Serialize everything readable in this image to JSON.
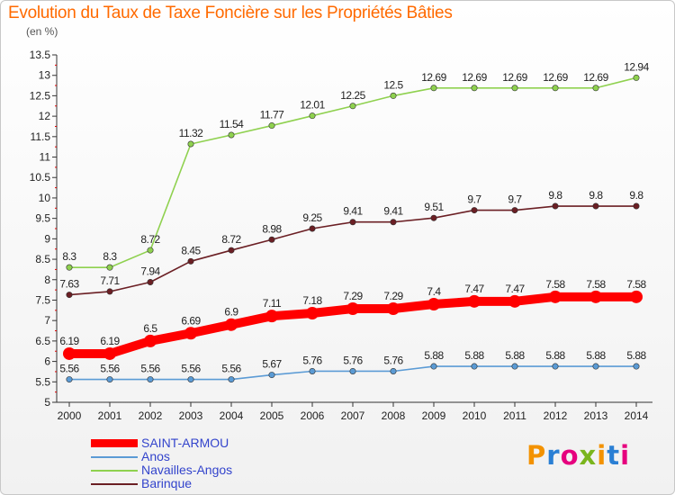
{
  "header": {
    "title": "Evolution du Taux de Taxe Foncière sur les Propriétés Bâties",
    "unit": "(en %)"
  },
  "logo": {
    "text": "Proxiti",
    "colors": [
      "#f39200",
      "#2a7fd4",
      "#e6007e",
      "#7ab51d",
      "#f39200",
      "#2a7fd4",
      "#e6007e"
    ]
  },
  "chart_data": {
    "type": "line",
    "title": "Evolution du Taux de Taxe Foncière sur les Propriétés Bâties",
    "ylabel": "(en %)",
    "xlabel": "",
    "ylim": [
      5,
      13.5
    ],
    "ytick_step": 0.5,
    "grid": false,
    "legend": "bottom-left",
    "x": [
      2000,
      2001,
      2002,
      2003,
      2004,
      2005,
      2006,
      2007,
      2008,
      2009,
      2010,
      2011,
      2012,
      2013,
      2014
    ],
    "series": [
      {
        "name": "SAINT-ARMOU",
        "color": "#ff0000",
        "values": [
          6.19,
          6.19,
          6.5,
          6.69,
          6.9,
          7.11,
          7.18,
          7.29,
          7.29,
          7.4,
          7.47,
          7.47,
          7.58,
          7.58,
          7.58
        ],
        "labels": [
          "6.19",
          "6.19",
          "6.5",
          "6.69",
          "6.9",
          "7.11",
          "7.18",
          "7.29",
          "7.29",
          "7.4",
          "7.47",
          "7.47",
          "7.58",
          "7.58",
          "7.58"
        ]
      },
      {
        "name": "Anos",
        "color": "#5b9bd5",
        "values": [
          5.56,
          5.56,
          5.56,
          5.56,
          5.56,
          5.67,
          5.76,
          5.76,
          5.76,
          5.88,
          5.88,
          5.88,
          5.88,
          5.88,
          5.88
        ],
        "labels": [
          "5.56",
          "5.56",
          "5.56",
          "5.56",
          "5.56",
          "5.67",
          "5.76",
          "5.76",
          "5.76",
          "5.88",
          "5.88",
          "5.88",
          "5.88",
          "5.88",
          "5.88"
        ]
      },
      {
        "name": "Navailles-Angos",
        "color": "#8fd14f",
        "values": [
          8.3,
          8.3,
          8.72,
          11.32,
          11.54,
          11.77,
          12.01,
          12.25,
          12.5,
          12.69,
          12.69,
          12.69,
          12.69,
          12.69,
          12.94
        ],
        "labels": [
          "8.3",
          "8.3",
          "8.72",
          "11.32",
          "11.54",
          "11.77",
          "12.01",
          "12.25",
          "12.5",
          "12.69",
          "12.69",
          "12.69",
          "12.69",
          "12.69",
          "12.94"
        ]
      },
      {
        "name": "Barinque",
        "color": "#6b1f24",
        "values": [
          7.63,
          7.71,
          7.94,
          8.45,
          8.72,
          8.98,
          9.25,
          9.41,
          9.41,
          9.51,
          9.7,
          9.7,
          9.8,
          9.8,
          9.8
        ],
        "labels": [
          "7.63",
          "7.71",
          "7.94",
          "8.45",
          "8.72",
          "8.98",
          "9.25",
          "9.41",
          "9.41",
          "9.51",
          "9.7",
          "9.7",
          "9.8",
          "9.8",
          "9.8"
        ]
      }
    ]
  }
}
